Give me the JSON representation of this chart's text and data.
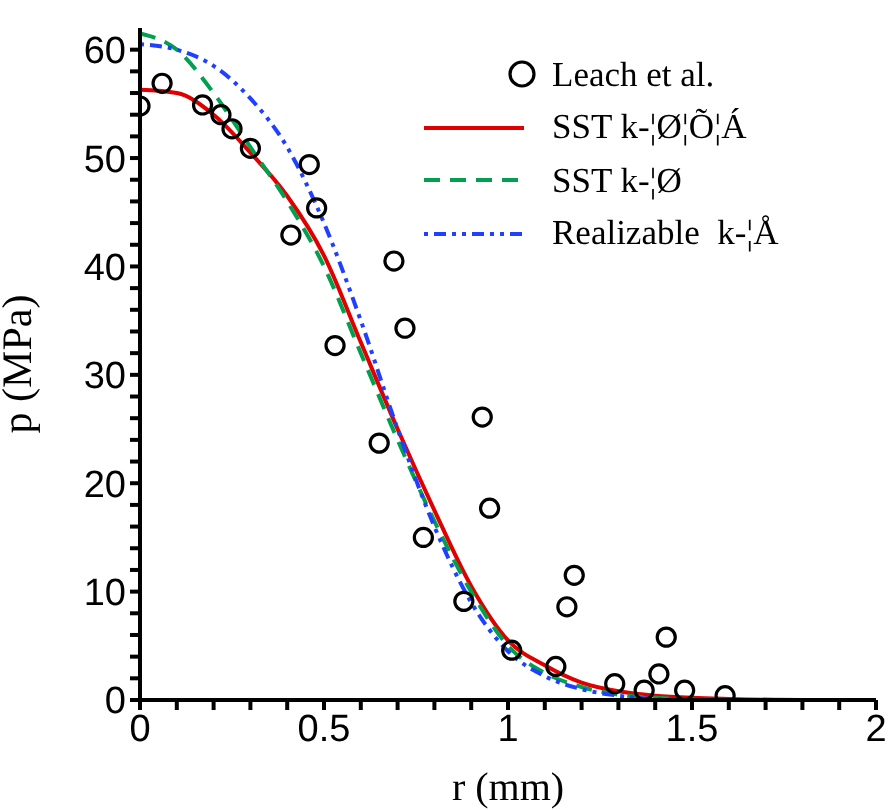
{
  "chart_data": {
    "type": "line",
    "xlabel": "r (mm)",
    "ylabel": "p (MPa)",
    "xlim": [
      0,
      2
    ],
    "ylim": [
      0,
      62
    ],
    "xticks": [
      0,
      {
        "value": 0.1,
        "label": null
      },
      {
        "value": 0.2,
        "label": null
      },
      {
        "value": 0.3,
        "label": null
      },
      {
        "value": 0.4,
        "label": null
      },
      0.5,
      {
        "value": 0.6,
        "label": null
      },
      {
        "value": 0.7,
        "label": null
      },
      {
        "value": 0.8,
        "label": null
      },
      {
        "value": 0.9,
        "label": null
      },
      1,
      {
        "value": 1.1,
        "label": null
      },
      {
        "value": 1.2,
        "label": null
      },
      {
        "value": 1.3,
        "label": null
      },
      {
        "value": 1.4,
        "label": null
      },
      1.5,
      {
        "value": 1.6,
        "label": null
      },
      {
        "value": 1.7,
        "label": null
      },
      {
        "value": 1.8,
        "label": null
      },
      {
        "value": 1.9,
        "label": null
      },
      2
    ],
    "yticks": [
      0,
      {
        "value": 2,
        "label": null
      },
      {
        "value": 4,
        "label": null
      },
      {
        "value": 6,
        "label": null
      },
      {
        "value": 8,
        "label": null
      },
      10,
      {
        "value": 12,
        "label": null
      },
      {
        "value": 14,
        "label": null
      },
      {
        "value": 16,
        "label": null
      },
      {
        "value": 18,
        "label": null
      },
      20,
      {
        "value": 22,
        "label": null
      },
      {
        "value": 24,
        "label": null
      },
      {
        "value": 26,
        "label": null
      },
      {
        "value": 28,
        "label": null
      },
      30,
      {
        "value": 32,
        "label": null
      },
      {
        "value": 34,
        "label": null
      },
      {
        "value": 36,
        "label": null
      },
      {
        "value": 38,
        "label": null
      },
      40,
      {
        "value": 42,
        "label": null
      },
      {
        "value": 44,
        "label": null
      },
      {
        "value": 46,
        "label": null
      },
      {
        "value": 48,
        "label": null
      },
      50,
      {
        "value": 52,
        "label": null
      },
      {
        "value": 54,
        "label": null
      },
      {
        "value": 56,
        "label": null
      },
      {
        "value": 58,
        "label": null
      },
      60
    ],
    "grid": false,
    "legend": "top right",
    "series": [
      {
        "name": "Leach et al.",
        "type": "scatter",
        "marker": "circle",
        "color": "#000000",
        "x": [
          0,
          0.06,
          0.17,
          0.22,
          0.25,
          0.3,
          0.41,
          0.46,
          0.48,
          0.53,
          0.65,
          0.69,
          0.72,
          0.77,
          0.88,
          0.93,
          0.95,
          1.01,
          1.13,
          1.16,
          1.18,
          1.29,
          1.37,
          1.41,
          1.43,
          1.48,
          1.59
        ],
        "values": [
          54.8,
          56.9,
          54.9,
          54,
          52.7,
          50.9,
          42.9,
          49.4,
          45.4,
          32.7,
          23.7,
          40.5,
          34.3,
          15,
          9.1,
          26.1,
          17.7,
          4.6,
          3.1,
          8.6,
          11.5,
          1.5,
          0.9,
          2.4,
          5.8,
          0.9,
          0.4
        ]
      },
      {
        "name": "SST k-¦Ø¦Õ¦Á",
        "line_style": "solid",
        "color": "#e00000",
        "x": [
          0,
          0.1,
          0.2,
          0.3,
          0.4,
          0.5,
          0.6,
          0.7,
          0.8,
          0.9,
          1,
          1.1,
          1.2,
          1.3,
          1.4,
          1.5,
          1.6,
          1.8,
          2
        ],
        "values": [
          56.3,
          56,
          54,
          50.5,
          46.5,
          41,
          33,
          25,
          17.5,
          10.5,
          5.5,
          3.2,
          1.6,
          0.8,
          0.4,
          0.2,
          0.1,
          0,
          0
        ]
      },
      {
        "name": "SST k-¦Ø",
        "line_style": "dashed",
        "color": "#00a050",
        "x": [
          0,
          0.1,
          0.2,
          0.3,
          0.4,
          0.5,
          0.6,
          0.7,
          0.8,
          0.9,
          1,
          1.1,
          1.2,
          1.3,
          1.4,
          1.6,
          2
        ],
        "values": [
          61.5,
          60,
          56,
          51,
          46,
          40,
          32,
          24,
          16.5,
          10,
          5,
          2.5,
          1.2,
          0.5,
          0.2,
          0,
          0
        ]
      },
      {
        "name": "Realizable  k-¦Å",
        "line_style": "dotted",
        "color": "#2040ff",
        "x": [
          0,
          0.1,
          0.2,
          0.3,
          0.4,
          0.5,
          0.6,
          0.7,
          0.8,
          0.9,
          1,
          1.1,
          1.2,
          1.3,
          1.4,
          1.6
        ],
        "values": [
          60.5,
          60,
          58.5,
          55.5,
          51,
          44,
          35,
          25,
          16,
          9,
          4.5,
          2.2,
          1,
          0.4,
          0.1,
          0
        ]
      }
    ]
  }
}
